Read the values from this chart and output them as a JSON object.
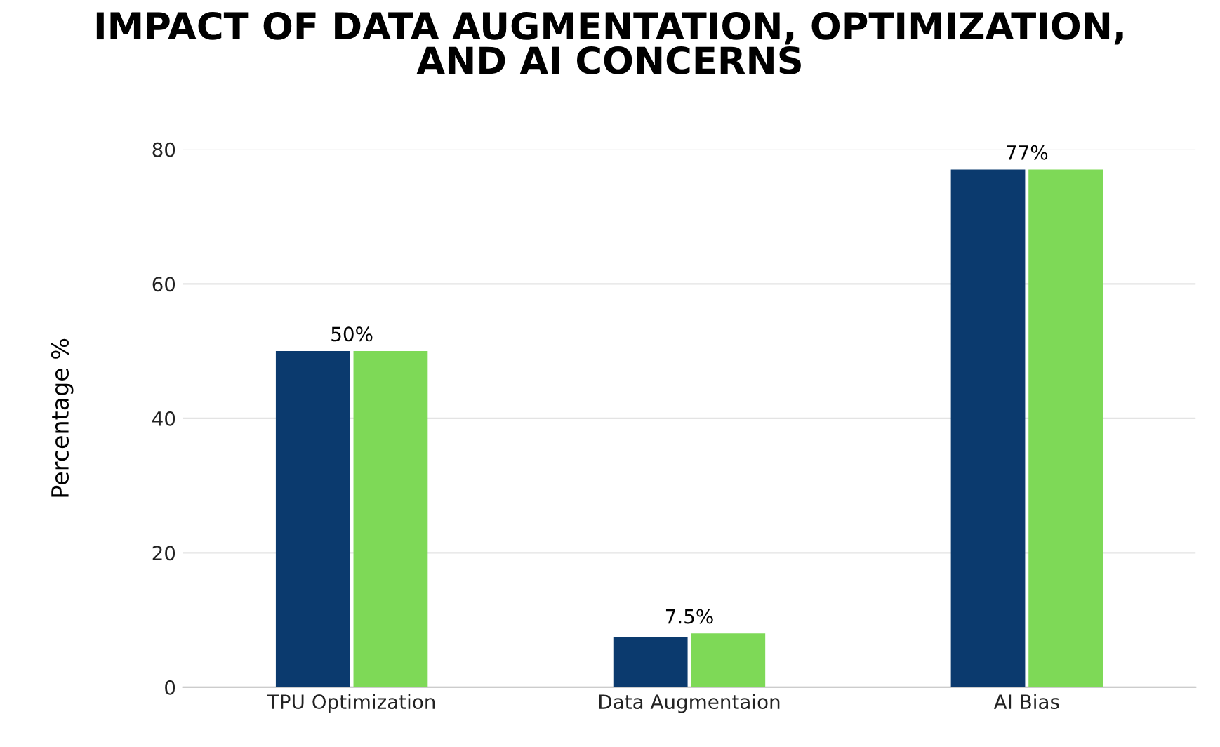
{
  "chart_data": {
    "type": "bar",
    "title": "IMPACT OF DATA AUGMENTATION, OPTIMIZATION,\nAND AI CONCERNS",
    "ylabel": "Percentage %",
    "categories": [
      "TPU Optimization",
      "Data Augmentaion",
      "AI Bias"
    ],
    "series": [
      {
        "color": "#0b3a6e",
        "values": [
          50,
          7.5,
          77
        ]
      },
      {
        "color": "#7ed957",
        "values": [
          50,
          8,
          77
        ]
      }
    ],
    "annotations": [
      {
        "text": "50%",
        "x": "TPU Optimization",
        "y": 50
      },
      {
        "text": "7.5%",
        "x": "Data Augmentaion",
        "y": 8
      },
      {
        "text": "77%",
        "x": "AI Bias",
        "y": 77
      }
    ],
    "ylim": [
      0,
      80
    ],
    "yticks": [
      0,
      20,
      40,
      60,
      80
    ],
    "grid": "y",
    "legend": false
  }
}
